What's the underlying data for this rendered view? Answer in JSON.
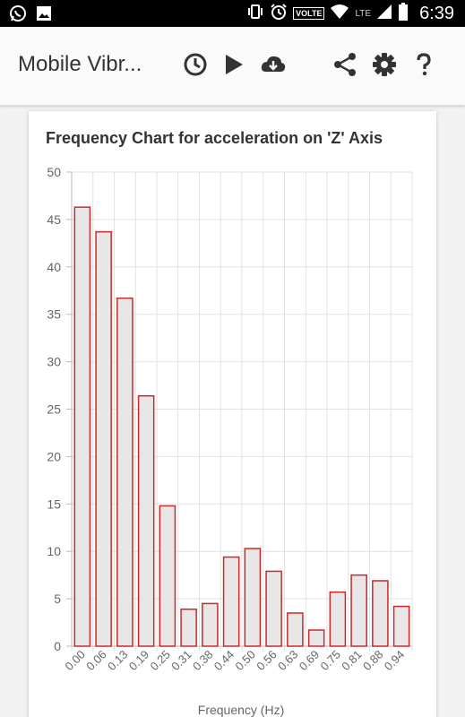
{
  "status_bar": {
    "time": "6:39",
    "volte_label": "VOLTE",
    "network_label": "LTE",
    "left_icons": [
      "whatsapp-icon",
      "image-icon"
    ],
    "right_icons": [
      "vibrate-icon",
      "alarm-icon",
      "wifi-icon",
      "signal-icon",
      "battery-icon"
    ]
  },
  "app_bar": {
    "title": "Mobile Vibr...",
    "actions": [
      "history-icon",
      "play-icon",
      "download-icon",
      "share-icon",
      "settings-icon",
      "help-icon"
    ]
  },
  "chart_data": {
    "type": "bar",
    "title": "Frequency Chart for acceleration on 'Z' Axis",
    "xlabel": "Frequency (Hz)",
    "ylabel": "",
    "categories": [
      "0.00",
      "0.06",
      "0.13",
      "0.19",
      "0.25",
      "0.31",
      "0.38",
      "0.44",
      "0.50",
      "0.56",
      "0.63",
      "0.69",
      "0.75",
      "0.81",
      "0.88",
      "0.94"
    ],
    "values": [
      46.3,
      43.7,
      36.7,
      26.4,
      14.8,
      3.9,
      4.5,
      9.4,
      10.3,
      7.9,
      3.5,
      1.7,
      5.7,
      7.5,
      6.9,
      4.2
    ],
    "ylim": [
      0,
      50
    ],
    "yticks": [
      0,
      5,
      10,
      15,
      20,
      25,
      30,
      35,
      40,
      45,
      50
    ],
    "grid": true,
    "colors": {
      "bar_fill": "#e8e6e6",
      "bar_stroke": "#cc2a2a",
      "grid": "#e2e2e2",
      "axis_text": "#666666"
    }
  }
}
